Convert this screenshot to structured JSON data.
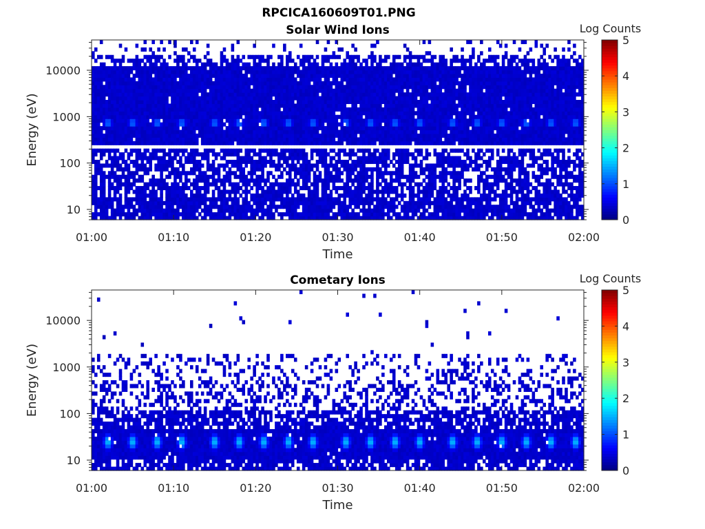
{
  "figure": {
    "title": "RPCICA160609T01.PNG"
  },
  "chart_data": [
    {
      "type": "heatmap",
      "title": "Solar Wind Ions",
      "xlabel": "Time",
      "ylabel": "Energy (eV)",
      "x_ticks": [
        "01:00",
        "01:10",
        "01:20",
        "01:30",
        "01:40",
        "01:50",
        "02:00"
      ],
      "xlim": [
        "01:00",
        "02:00"
      ],
      "y_scale": "log",
      "y_ticks": [
        10,
        100,
        1000,
        10000
      ],
      "y_tick_labels": [
        "10",
        "100",
        "1000",
        "10000"
      ],
      "ylim": [
        6,
        45000
      ],
      "colorbar": {
        "label": "Log Counts",
        "range": [
          0,
          5
        ],
        "ticks": [
          "0",
          "1",
          "2",
          "3",
          "4",
          "5"
        ],
        "colormap": "jet"
      },
      "background_level": 0.3,
      "peak_energy_eV": 750,
      "peak_times": [
        "01:02",
        "01:05",
        "01:08",
        "01:11",
        "01:15",
        "01:18",
        "01:21",
        "01:24",
        "01:27",
        "01:31",
        "01:34",
        "01:37",
        "01:40",
        "01:44",
        "01:47",
        "01:50",
        "01:53",
        "01:56",
        "01:59"
      ],
      "peak_level": 1.6,
      "gap_energy_eV": 200
    },
    {
      "type": "heatmap",
      "title": "Cometary Ions",
      "xlabel": "Time",
      "ylabel": "Energy (eV)",
      "x_ticks": [
        "01:00",
        "01:10",
        "01:20",
        "01:30",
        "01:40",
        "01:50",
        "02:00"
      ],
      "xlim": [
        "01:00",
        "02:00"
      ],
      "y_scale": "log",
      "y_ticks": [
        10,
        100,
        1000,
        10000
      ],
      "y_tick_labels": [
        "10",
        "100",
        "1000",
        "10000"
      ],
      "ylim": [
        6,
        45000
      ],
      "colorbar": {
        "label": "Log Counts",
        "range": [
          0,
          5
        ],
        "ticks": [
          "0",
          "1",
          "2",
          "3",
          "4",
          "5"
        ],
        "colormap": "jet"
      },
      "background_level": 0.3,
      "peak_energy_eV": 25,
      "peak_times": [
        "01:02",
        "01:05",
        "01:08",
        "01:11",
        "01:15",
        "01:18",
        "01:21",
        "01:24",
        "01:27",
        "01:31",
        "01:34",
        "01:37",
        "01:40",
        "01:44",
        "01:47",
        "01:50",
        "01:53",
        "01:56",
        "01:59"
      ],
      "peak_level": 1.6
    }
  ]
}
